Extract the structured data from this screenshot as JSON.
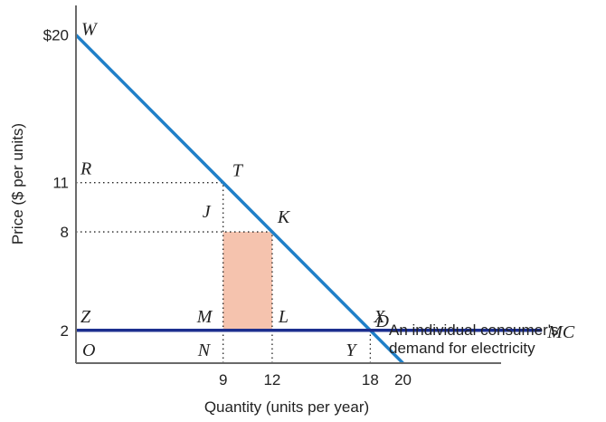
{
  "chart_data": {
    "type": "line",
    "xlabel": "Quantity (units per year)",
    "ylabel": "Price ($ per units)",
    "xlim": [
      0,
      26
    ],
    "ylim": [
      0,
      21.8
    ],
    "x_ticks": [
      {
        "value": 9,
        "label": "9"
      },
      {
        "value": 12,
        "label": "12"
      },
      {
        "value": 18,
        "label": "18"
      },
      {
        "value": 20,
        "label": "20"
      }
    ],
    "y_ticks": [
      {
        "value": 20,
        "label": "$20"
      },
      {
        "value": 11,
        "label": "11"
      },
      {
        "value": 8,
        "label": "8"
      },
      {
        "value": 2,
        "label": "2"
      }
    ],
    "series": [
      {
        "name": "D",
        "x": [
          0,
          20
        ],
        "y": [
          20,
          0
        ],
        "color": "#1f7fc8"
      },
      {
        "name": "MC",
        "x": [
          0,
          28.5
        ],
        "y": [
          2,
          2
        ],
        "color": "#1c2f8f"
      }
    ],
    "shaded_region": {
      "x": [
        9,
        12
      ],
      "y": [
        2,
        8
      ],
      "color": "#f5c3ae"
    },
    "guide_lines": [
      {
        "from": [
          0,
          11
        ],
        "to": [
          9,
          11
        ]
      },
      {
        "from": [
          0,
          8
        ],
        "to": [
          12,
          8
        ]
      },
      {
        "from": [
          9,
          0
        ],
        "to": [
          9,
          11
        ]
      },
      {
        "from": [
          12,
          0
        ],
        "to": [
          12,
          8
        ]
      },
      {
        "from": [
          18,
          0
        ],
        "to": [
          18,
          2
        ]
      }
    ],
    "point_labels": [
      {
        "text": "W",
        "x": 0,
        "y": 20
      },
      {
        "text": "R",
        "x": 0,
        "y": 11
      },
      {
        "text": "T",
        "x": 9,
        "y": 11
      },
      {
        "text": "J",
        "x": 9,
        "y": 8
      },
      {
        "text": "K",
        "x": 12,
        "y": 8
      },
      {
        "text": "Z",
        "x": 0,
        "y": 2
      },
      {
        "text": "M",
        "x": 9,
        "y": 2
      },
      {
        "text": "L",
        "x": 12,
        "y": 2
      },
      {
        "text": "X",
        "x": 18,
        "y": 2
      },
      {
        "text": "MC",
        "x": 28.5,
        "y": 2
      },
      {
        "text": "D",
        "x": 20,
        "y": 0
      },
      {
        "text": "O",
        "x": 0,
        "y": 0
      },
      {
        "text": "N",
        "x": 9,
        "y": 0
      },
      {
        "text": "Y",
        "x": 18,
        "y": 0
      }
    ],
    "annotation": [
      "An individual consumer's",
      "demand for electricity"
    ],
    "grid": false,
    "legend": "none"
  }
}
